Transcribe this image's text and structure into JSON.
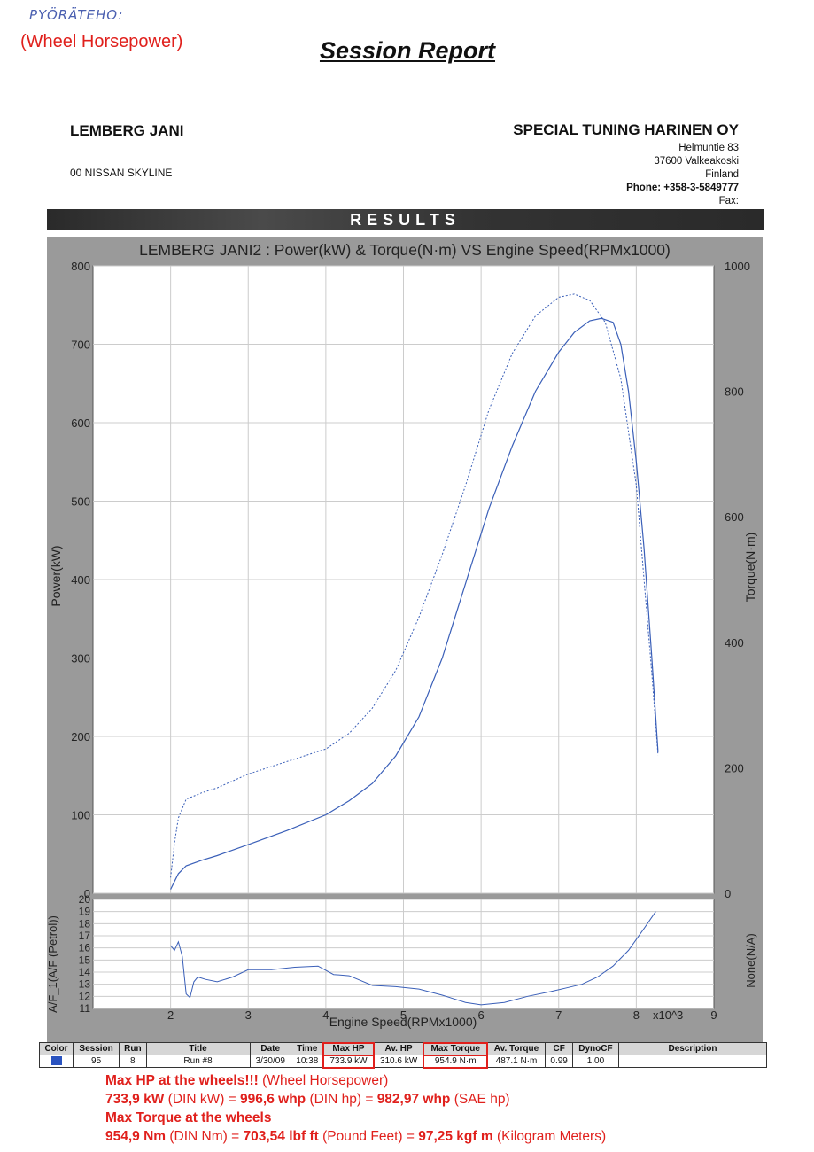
{
  "handwritten": "PYÖRÄTEHO:",
  "top_note": "(Wheel Horsepower)",
  "report_title": "Session Report",
  "customer": {
    "name": "LEMBERG JANI",
    "vehicle": "00 NISSAN  SKYLINE"
  },
  "company": {
    "name": "SPECIAL TUNING HARINEN OY",
    "street": "Helmuntie 83",
    "city": "37600 Valkeakoski",
    "country": "Finland",
    "phone": "Phone: +358-3-5849777",
    "fax": "Fax:"
  },
  "results_label": "RESULTS",
  "chart_data": [
    {
      "type": "line",
      "title": "LEMBERG JANI2 : Power(kW) & Torque(N·m) VS Engine Speed(RPMx1000)",
      "ylabel": "Power(kW)",
      "y2label": "Torque(N·m)",
      "ylim": [
        0,
        800
      ],
      "y2lim": [
        0,
        1000
      ],
      "xlim": [
        1,
        9
      ],
      "yticks": [
        "0",
        "100",
        "200",
        "300",
        "400",
        "500",
        "600",
        "700",
        "800"
      ],
      "y2ticks": [
        "0",
        "200",
        "400",
        "600",
        "800",
        "1000"
      ],
      "series": [
        {
          "axis": "left",
          "style": "solid",
          "x": [
            2.0,
            2.05,
            2.1,
            2.2,
            2.4,
            2.6,
            3.0,
            3.5,
            4.0,
            4.3,
            4.6,
            4.9,
            5.2,
            5.5,
            5.8,
            6.1,
            6.4,
            6.7,
            7.0,
            7.2,
            7.4,
            7.55,
            7.7,
            7.8,
            7.9,
            8.0,
            8.1,
            8.2,
            8.28
          ],
          "y": [
            5,
            15,
            25,
            35,
            42,
            48,
            62,
            80,
            100,
            118,
            140,
            175,
            225,
            300,
            395,
            490,
            570,
            640,
            690,
            715,
            730,
            733,
            728,
            700,
            640,
            550,
            440,
            300,
            180
          ]
        },
        {
          "axis": "right",
          "style": "dashed",
          "x": [
            2.0,
            2.05,
            2.1,
            2.2,
            2.4,
            2.6,
            3.0,
            3.5,
            4.0,
            4.3,
            4.6,
            4.9,
            5.2,
            5.5,
            5.8,
            6.1,
            6.4,
            6.7,
            7.0,
            7.2,
            7.4,
            7.6,
            7.8,
            8.0,
            8.1,
            8.2,
            8.28
          ],
          "y": [
            25,
            80,
            120,
            150,
            160,
            168,
            190,
            210,
            230,
            255,
            295,
            355,
            440,
            540,
            650,
            770,
            860,
            920,
            950,
            955,
            945,
            910,
            820,
            650,
            500,
            350,
            220
          ]
        }
      ]
    },
    {
      "type": "line",
      "ylabel": "A/F_1(A/F (Petrol))",
      "y2label": "None(N/A)",
      "xlabel": "Engine Speed(RPMx1000)",
      "x_unit": "x10^3",
      "ylim": [
        11,
        20
      ],
      "xlim": [
        1,
        9
      ],
      "yticks": [
        "11",
        "12",
        "13",
        "14",
        "15",
        "16",
        "17",
        "18",
        "19",
        "20"
      ],
      "xticks": [
        "2",
        "3",
        "4",
        "5",
        "6",
        "7",
        "8",
        "9"
      ],
      "series": [
        {
          "x": [
            2.0,
            2.05,
            2.1,
            2.15,
            2.2,
            2.25,
            2.3,
            2.35,
            2.45,
            2.6,
            2.8,
            3.0,
            3.3,
            3.6,
            3.9,
            4.1,
            4.3,
            4.6,
            4.9,
            5.2,
            5.5,
            5.8,
            6.0,
            6.3,
            6.6,
            6.9,
            7.1,
            7.3,
            7.5,
            7.7,
            7.9,
            8.1,
            8.25
          ],
          "y": [
            16.2,
            15.8,
            16.5,
            15.3,
            12.2,
            11.9,
            13.2,
            13.6,
            13.4,
            13.2,
            13.6,
            14.2,
            14.2,
            14.4,
            14.5,
            13.8,
            13.7,
            12.9,
            12.8,
            12.6,
            12.1,
            11.5,
            11.3,
            11.5,
            12.0,
            12.4,
            12.7,
            13.0,
            13.6,
            14.5,
            15.8,
            17.6,
            19.0
          ]
        }
      ]
    }
  ],
  "table": {
    "headers": [
      "Color",
      "Session",
      "Run",
      "Title",
      "Date",
      "Time",
      "Max HP",
      "Av. HP",
      "Max Torque",
      "Av. Torque",
      "CF",
      "DynoCF",
      "Description"
    ],
    "row": [
      "",
      "95",
      "8",
      "Run #8",
      "3/30/09",
      "10:38",
      "733.9 kW",
      "310.6 kW",
      "954.9 N·m",
      "487.1 N·m",
      "0.99",
      "1.00",
      ""
    ],
    "swatch_color": "#2a53c0"
  },
  "notes": {
    "hp_title": "Max HP at the wheels!!!",
    "hp_title_suffix": " (Wheel Horsepower)",
    "hp_kw": "733,9 kW",
    "hp_kw_suffix": " (DIN kW) = ",
    "hp_whp": "996,6 whp",
    "hp_whp_suffix": " (DIN hp) = ",
    "hp_sae": "982,97 whp",
    "hp_sae_suffix": " (SAE hp)",
    "tq_title": "Max Torque at the wheels",
    "tq_nm": "954,9 Nm",
    "tq_nm_suffix": " (DIN Nm) = ",
    "tq_lbf": "703,54 lbf ft",
    "tq_lbf_suffix": " (Pound Feet) = ",
    "tq_kgf": "97,25 kgf m",
    "tq_kgf_suffix": " (Kilogram Meters)"
  },
  "colors": {
    "accent": "#e0201c",
    "curve": "#3a5fb8"
  }
}
